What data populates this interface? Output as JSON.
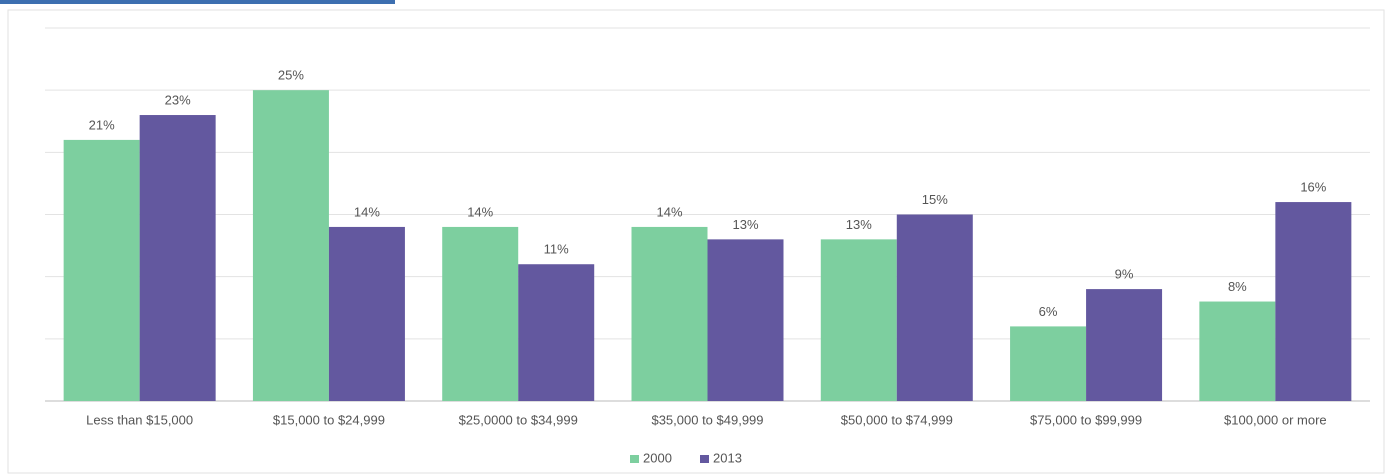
{
  "chart_data": {
    "type": "bar",
    "categories": [
      "Less than $15,000",
      "$15,000 to $24,999",
      "$25,0000 to $34,999",
      "$35,000 to $49,999",
      "$50,000 to $74,999",
      "$75,000 to $99,999",
      "$100,000 or more"
    ],
    "series": [
      {
        "name": "2000",
        "color": "#7dcf9f",
        "values": [
          21,
          25,
          14,
          14,
          13,
          6,
          8
        ],
        "value_labels": [
          "21%",
          "25%",
          "14%",
          "14%",
          "13%",
          "6%",
          "8%"
        ]
      },
      {
        "name": "2013",
        "color": "#63589f",
        "values": [
          23,
          14,
          11,
          13,
          15,
          9,
          16
        ],
        "value_labels": [
          "23%",
          "14%",
          "11%",
          "13%",
          "15%",
          "9%",
          "16%"
        ]
      }
    ],
    "ylim": [
      0,
      30
    ],
    "yticks": [
      0,
      5,
      10,
      15,
      20,
      25,
      30
    ],
    "grid": true,
    "legend": "bottom"
  }
}
